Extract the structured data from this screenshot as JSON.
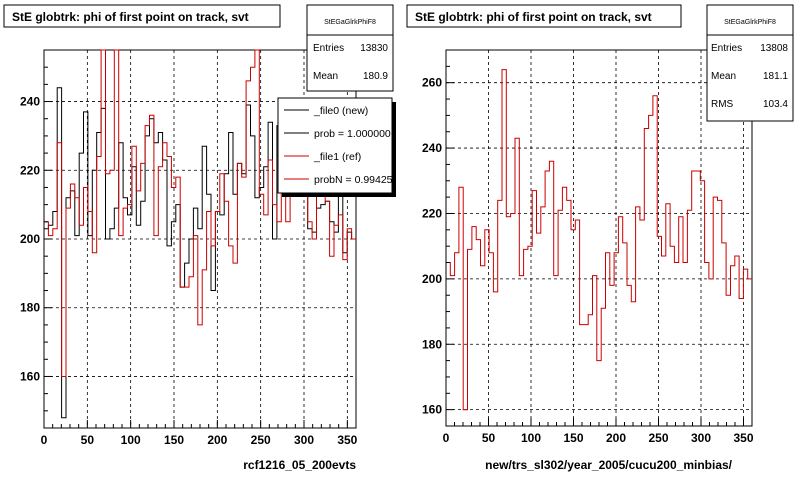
{
  "chart_data": [
    {
      "type": "line",
      "title": "StE globtrk: phi of first point on track, svt",
      "xlabel": "rcf1216_05_200evts",
      "ylabel": "",
      "xlim": [
        0,
        360
      ],
      "ylim": [
        145,
        255
      ],
      "xticks": [
        0,
        50,
        100,
        150,
        200,
        250,
        300,
        350
      ],
      "yticks": [
        160,
        180,
        200,
        220,
        240
      ],
      "grid": true,
      "stats": {
        "name": "StEGaGlrkPhiF8",
        "entries_label": "Entries",
        "entries": "13830",
        "mean_label": "Mean",
        "mean": "180.9"
      },
      "legend": {
        "placement": "top-right",
        "entries": [
          "_file0 (new)",
          "prob = 1.000000",
          "_file1 (ref)",
          "probN = 0.99425"
        ]
      },
      "series": [
        {
          "name": "_file0 (new)",
          "color": "#000000",
          "values": [
            203,
            204,
            208,
            244,
            148,
            212,
            214,
            201,
            225,
            237,
            201,
            220,
            231,
            238,
            200,
            203,
            209,
            228,
            212,
            207,
            221,
            204,
            211,
            230,
            235,
            228,
            231,
            223,
            198,
            205,
            210,
            186,
            193,
            200,
            209,
            203,
            227,
            213,
            185,
            208,
            207,
            219,
            231,
            213,
            222,
            219,
            239,
            230,
            212,
            215,
            221,
            234,
            200,
            233,
            215,
            224,
            214,
            230,
            236,
            213,
            203,
            202,
            209,
            210,
            211,
            205,
            202,
            222,
            196,
            202,
            200
          ]
        },
        {
          "name": "_file1 (ref)",
          "color": "#cc0000",
          "values": [
            205,
            201,
            203,
            228,
            160,
            209,
            216,
            212,
            204,
            215,
            208,
            196,
            224,
            264,
            219,
            220,
            263,
            201,
            209,
            210,
            227,
            214,
            222,
            233,
            236,
            201,
            221,
            228,
            224,
            215,
            218,
            186,
            186,
            189,
            201,
            175,
            191,
            208,
            198,
            208,
            219,
            211,
            198,
            193,
            222,
            218,
            246,
            250,
            256,
            213,
            207,
            223,
            210,
            205,
            219,
            205,
            221,
            233,
            233,
            230,
            205,
            200,
            225,
            224,
            211,
            195,
            204,
            207,
            194,
            203,
            200
          ]
        }
      ]
    },
    {
      "type": "line",
      "title": "StE globtrk: phi of first point on track, svt",
      "xlabel": "new/trs_sl302/year_2005/cucu200_minbias/",
      "ylabel": "",
      "xlim": [
        0,
        360
      ],
      "ylim": [
        155,
        270
      ],
      "xticks": [
        0,
        50,
        100,
        150,
        200,
        250,
        300,
        350
      ],
      "yticks": [
        160,
        180,
        200,
        220,
        240,
        260
      ],
      "grid": true,
      "stats": {
        "name": "StEGaGlrkPhiF8",
        "entries_label": "Entries",
        "entries": "13808",
        "mean_label": "Mean",
        "mean": "181.1",
        "rms_label": "RMS",
        "rms": "103.4"
      },
      "series": [
        {
          "name": "",
          "color": "#cc0000",
          "values": [
            205,
            201,
            208,
            228,
            160,
            209,
            216,
            212,
            204,
            215,
            208,
            196,
            224,
            264,
            219,
            220,
            243,
            201,
            209,
            210,
            227,
            214,
            222,
            233,
            236,
            201,
            221,
            228,
            224,
            215,
            218,
            186,
            186,
            189,
            201,
            175,
            191,
            208,
            198,
            208,
            219,
            211,
            198,
            193,
            222,
            218,
            246,
            250,
            256,
            213,
            207,
            223,
            210,
            205,
            219,
            205,
            221,
            233,
            233,
            230,
            205,
            200,
            225,
            224,
            211,
            195,
            204,
            207,
            194,
            203,
            200
          ]
        }
      ]
    }
  ]
}
